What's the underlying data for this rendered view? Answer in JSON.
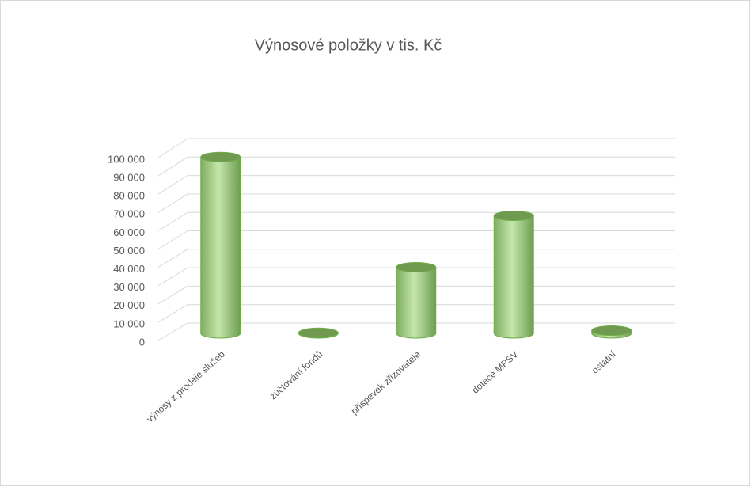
{
  "chart_data": {
    "type": "bar3d",
    "title": "Výnosové položky v tis. Kč",
    "categories": [
      "výnosy z prodeje služeb",
      "zúčtování fondů",
      "příspevek zřizovatele",
      "dotace MPSV",
      "ostatní"
    ],
    "values": [
      96000,
      300,
      36000,
      64000,
      1500
    ],
    "color": "#a9d18e",
    "ylim": [
      0,
      100000
    ],
    "yticks": [
      0,
      {
        "value": 10000,
        "label": "10 000"
      },
      {
        "value": 20000,
        "label": "20 000"
      },
      {
        "value": 30000,
        "label": "30 000"
      },
      {
        "value": 40000,
        "label": "40 000"
      },
      {
        "value": 50000,
        "label": "50 000"
      },
      {
        "value": 60000,
        "label": "60 000"
      },
      {
        "value": 70000,
        "label": "70 000"
      },
      {
        "value": 80000,
        "label": "80 000"
      },
      {
        "value": 90000,
        "label": "90 000"
      },
      {
        "value": 100000,
        "label": "100 000"
      }
    ],
    "grid": true
  }
}
